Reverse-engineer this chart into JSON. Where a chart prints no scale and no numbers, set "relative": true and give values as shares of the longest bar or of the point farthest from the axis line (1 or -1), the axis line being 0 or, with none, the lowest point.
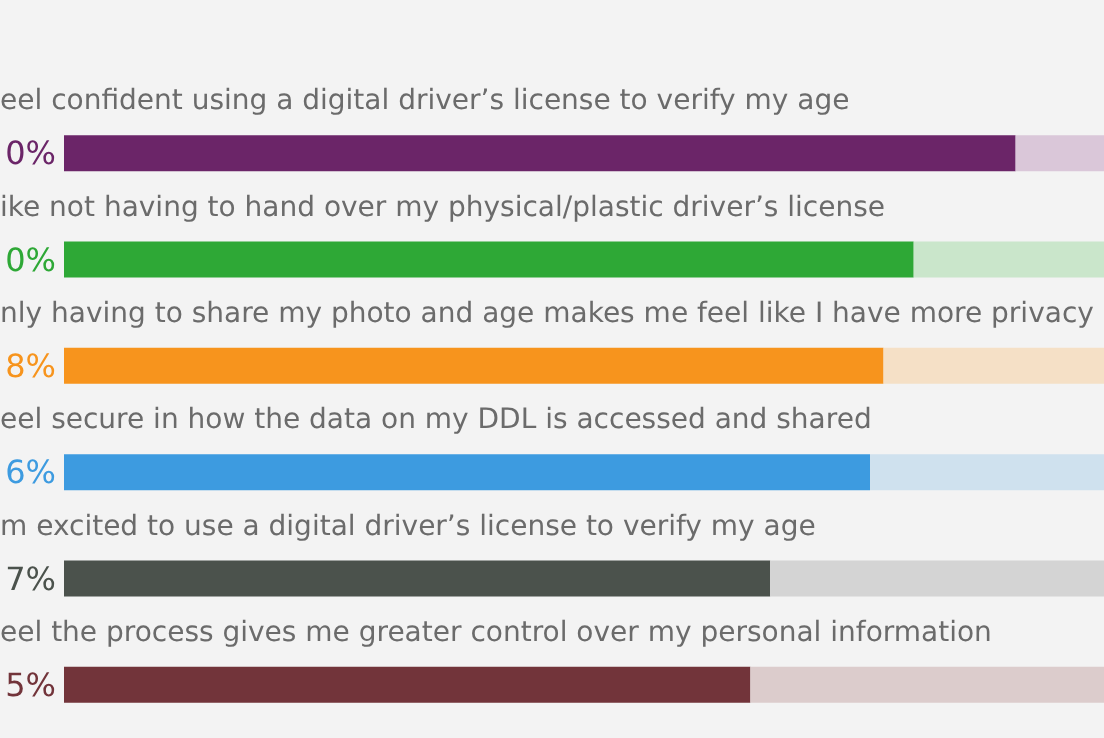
{
  "chart_data": {
    "type": "bar",
    "orientation": "horizontal",
    "stacked": true,
    "categories": [
      "eel confident using a digital driver’s license to verify my age",
      "ike not having to hand over my physical/plastic driver’s license",
      "nly having to share my photo and age makes me feel like I have more privacy",
      "eel secure in how the data on my DDL is accessed and shared",
      "m excited to use a digital driver’s license to verify my age",
      "eel the process gives me greater control over my personal information"
    ],
    "series": [
      {
        "colors": [
          "#6b2568",
          "#2ea836",
          "#f7941d",
          "#3d9be0",
          "#4b524c",
          "#72343a"
        ],
        "values": [
          0.915,
          0.817,
          0.788,
          0.775,
          0.679,
          0.66
        ]
      },
      {
        "colors": [
          "#dac7d9",
          "#cae6cb",
          "#f5e0c6",
          "#cfe1ee",
          "#d4d4d4",
          "#dccccc"
        ],
        "values": [
          0.085,
          0.183,
          0.212,
          0.225,
          0.321,
          0.34
        ]
      }
    ],
    "relative": true,
    "annotations": [
      "0%",
      "0%",
      "8%",
      "6%",
      "7%",
      "5%"
    ]
  }
}
